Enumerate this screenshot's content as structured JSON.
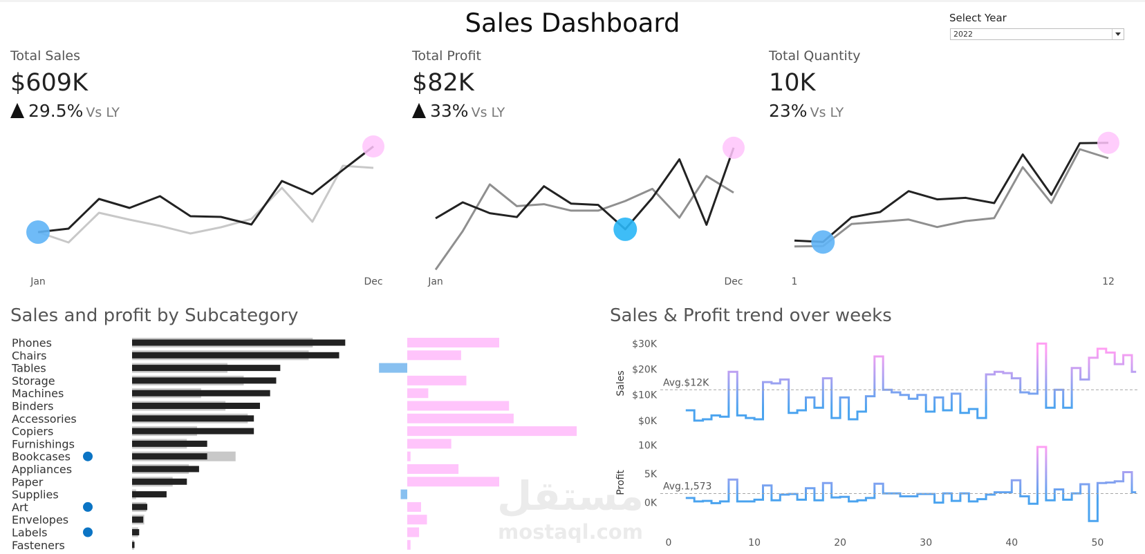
{
  "header": {
    "title": "Sales Dashboard"
  },
  "filter": {
    "label": "Select Year",
    "value": "2022"
  },
  "kpis": [
    {
      "label": "Total Sales",
      "value": "$609K",
      "change": "29.5%",
      "vs": "Vs LY",
      "arrow": "up"
    },
    {
      "label": "Total Profit",
      "value": "$82K",
      "change": "33%",
      "vs": "Vs LY",
      "arrow": "up"
    },
    {
      "label": "Total Quantity",
      "value": "10K",
      "change": "23%",
      "vs": "Vs LY",
      "arrow": "none"
    }
  ],
  "colors": {
    "current_year": "#222222",
    "prior_year_sales": "#c8c8c8",
    "prior_year_other": "#8f8f8f",
    "highlight_max": "#ffc4fb",
    "highlight_min": "#5fb4f6",
    "highlight_min_profit": "#29b6f6",
    "profit_positive": "#ffc4fb",
    "profit_negative": "#88c0f0",
    "trend_high": "#ff9ff3",
    "trend_low": "#4aa3ef",
    "indicator_dot": "#0b74c4",
    "avg_line": "#a6a6a6"
  },
  "sections": {
    "subcategory_title": "Sales and profit by Subcategory",
    "weekly_title": "Sales & Profit trend over weeks"
  },
  "watermark": {
    "text_ar": "مستقل",
    "text_en": "mostaql.com"
  },
  "chart_data": [
    {
      "type": "line",
      "id": "sales-monthly",
      "x": [
        1,
        2,
        3,
        4,
        5,
        6,
        7,
        8,
        9,
        10,
        11,
        12
      ],
      "x_tick_labels": [
        "Jan",
        "Dec"
      ],
      "series": [
        {
          "role": "current",
          "values": [
            22,
            24.5,
            46,
            39.5,
            48,
            33.5,
            33,
            27.5,
            59,
            49.5,
            67,
            84
          ]
        },
        {
          "role": "prior",
          "values": [
            22,
            14.5,
            36,
            31,
            26.5,
            21,
            25.5,
            31.5,
            54,
            29.5,
            70,
            68.5
          ]
        }
      ],
      "ylim": [
        0,
        90
      ],
      "max_point": {
        "x": 12,
        "y": 84
      },
      "min_point": {
        "x": 1,
        "y": 22
      }
    },
    {
      "type": "line",
      "id": "profit-monthly",
      "x": [
        1,
        2,
        3,
        4,
        5,
        6,
        7,
        8,
        9,
        10,
        11,
        12
      ],
      "x_tick_labels": [
        "Jan",
        "Dec"
      ],
      "series": [
        {
          "role": "current",
          "values": [
            6.5,
            9,
            7.3,
            6.7,
            11.5,
            8.8,
            8.6,
            4.8,
            9.7,
            15.7,
            5.5,
            17.5
          ]
        },
        {
          "role": "prior",
          "values": [
            -1.5,
            4.5,
            11.8,
            8.4,
            8.7,
            7.7,
            7.7,
            9.2,
            11.1,
            6.6,
            13.1,
            10.5
          ]
        }
      ],
      "ylim": [
        -2,
        19
      ],
      "max_point": {
        "x": 12,
        "y": 17.5
      },
      "min_point": {
        "x": 8,
        "y": 4.8
      }
    },
    {
      "type": "line",
      "id": "quantity-monthly",
      "x": [
        1,
        2,
        3,
        4,
        5,
        6,
        7,
        8,
        9,
        10,
        11,
        12
      ],
      "x_tick_labels": [
        "1",
        "12"
      ],
      "series": [
        {
          "role": "current",
          "values": [
            340,
            320,
            650,
            720,
            1000,
            890,
            910,
            840,
            1490,
            950,
            1640,
            1645
          ]
        },
        {
          "role": "prior",
          "values": [
            260,
            265,
            560,
            590,
            620,
            520,
            600,
            640,
            1320,
            840,
            1560,
            1440
          ]
        }
      ],
      "ylim": [
        0,
        1800
      ],
      "max_point": {
        "x": 12,
        "y": 1645
      },
      "min_point": {
        "x": 2,
        "y": 320
      }
    },
    {
      "type": "bar",
      "id": "subcategory-bars",
      "orientation": "horizontal",
      "categories": [
        "Phones",
        "Chairs",
        "Tables",
        "Storage",
        "Machines",
        "Binders",
        "Accessories",
        "Copiers",
        "Furnishings",
        "Bookcases",
        "Appliances",
        "Paper",
        "Supplies",
        "Art",
        "Envelopes",
        "Labels",
        "Fasteners"
      ],
      "flagged": [
        "Bookcases",
        "Art",
        "Labels"
      ],
      "series": [
        {
          "name": "Sales",
          "values": [
            105,
            102,
            73,
            71,
            68,
            63,
            60,
            60,
            37,
            37,
            33,
            27,
            17,
            7.5,
            5.5,
            3.5,
            1.2
          ]
        },
        {
          "name": "Sales LY",
          "values": [
            89,
            87,
            47,
            55,
            34,
            46,
            57,
            32,
            27,
            51,
            28,
            20,
            2,
            7,
            6,
            3,
            1
          ]
        },
        {
          "name": "Profit",
          "values": [
            14,
            8.2,
            -4.3,
            9,
            3.2,
            15.5,
            16.2,
            25.8,
            6.7,
            0.5,
            7.8,
            14,
            -1,
            2.1,
            3,
            1.8,
            0.5
          ]
        }
      ],
      "xlim_sales": [
        0,
        110
      ],
      "xlim_profit": [
        -5,
        28
      ]
    },
    {
      "type": "line",
      "id": "weekly-sales",
      "x_start": 2,
      "values": [
        4,
        0,
        0.5,
        2,
        1.5,
        19,
        2,
        1,
        0.5,
        15,
        14.5,
        16,
        3,
        4,
        9,
        5,
        16.5,
        1,
        9,
        0.5,
        3.5,
        9.5,
        25,
        12,
        11,
        10,
        8.5,
        10,
        3.5,
        9,
        4,
        10.5,
        3,
        4.5,
        1,
        18,
        19,
        18.5,
        16.5,
        11,
        10.5,
        30,
        5,
        12,
        5,
        20.5,
        16,
        24.5,
        28,
        26.5,
        22,
        25.5,
        19
      ],
      "ylabel": "Sales",
      "y_tick_labels": [
        "$0K",
        "$10K",
        "$20K",
        "$30K"
      ],
      "ylim": [
        -3,
        32
      ],
      "average": 12,
      "average_label": "Avg.$12K"
    },
    {
      "type": "line",
      "id": "weekly-profit",
      "x_start": 2,
      "values": [
        800,
        200,
        300,
        -100,
        200,
        4000,
        200,
        200,
        500,
        3000,
        400,
        1400,
        1500,
        500,
        2500,
        400,
        3400,
        900,
        1000,
        200,
        400,
        800,
        3300,
        1600,
        1600,
        1100,
        1100,
        1500,
        1500,
        0,
        1600,
        300,
        1600,
        200,
        600,
        1400,
        1800,
        1800,
        3900,
        1100,
        -200,
        9700,
        400,
        2300,
        500,
        1600,
        3200,
        -3200,
        3400,
        3500,
        3700,
        5300,
        1800
      ],
      "ylabel": "Profit",
      "y_tick_labels": [
        "0K",
        "5K",
        "10K"
      ],
      "ylim": [
        -4500,
        11500
      ],
      "average": 1573,
      "average_label": "Avg.1,573",
      "x_tick_labels": [
        "0",
        "10",
        "20",
        "30",
        "40",
        "50"
      ],
      "xlim": [
        0,
        54
      ]
    }
  ]
}
